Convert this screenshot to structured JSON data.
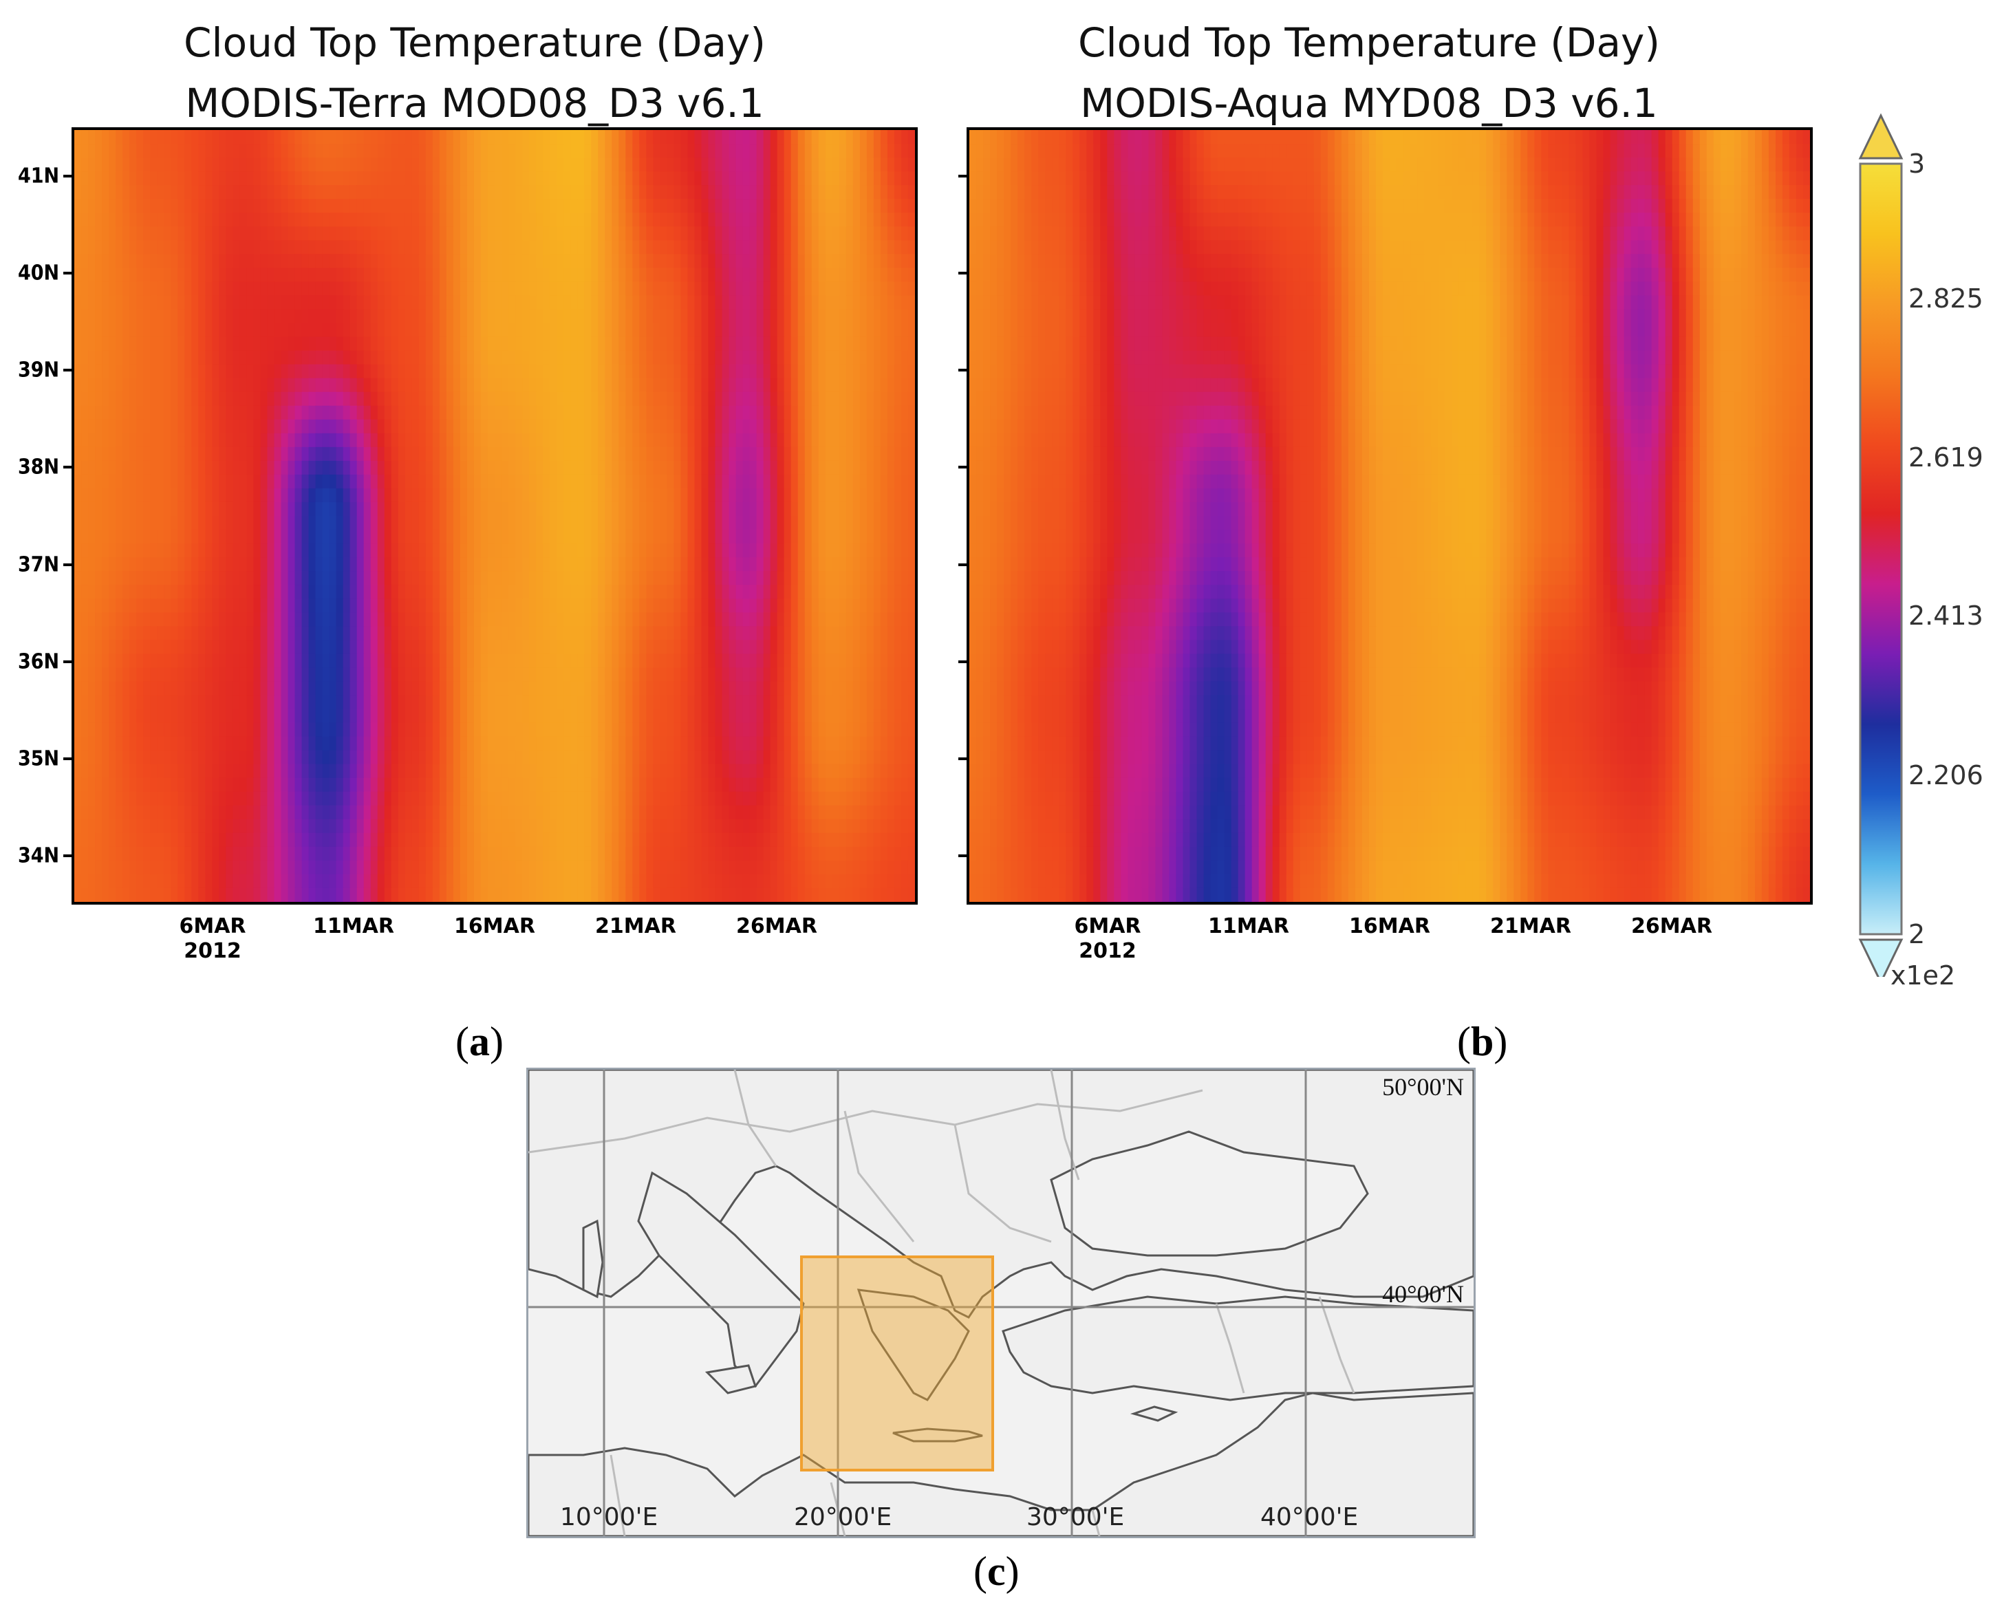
{
  "chart_data": [
    {
      "type": "heatmap",
      "panel": "(a)",
      "title": "Cloud Top Temperature (Day)",
      "subtitle": "MODIS-Terra MOD08_D3 v6.1",
      "x_tick_labels": [
        "6MAR",
        "11MAR",
        "16MAR",
        "21MAR",
        "26MAR"
      ],
      "x_year_label": "2012",
      "y_tick_labels": [
        "41N",
        "40N",
        "39N",
        "38N",
        "37N",
        "36N",
        "35N",
        "34N"
      ],
      "x": [
        "1MAR",
        "4MAR",
        "7MAR",
        "10MAR",
        "13MAR",
        "16MAR",
        "19MAR",
        "22MAR",
        "25MAR",
        "28MAR",
        "31MAR"
      ],
      "y": [
        33.5,
        35.5,
        37.5,
        39.5,
        41.5
      ],
      "values": [
        [
          270,
          266,
          252,
          235,
          262,
          280,
          284,
          262,
          258,
          266,
          262
        ],
        [
          272,
          262,
          256,
          226,
          258,
          282,
          284,
          265,
          250,
          276,
          266
        ],
        [
          274,
          270,
          258,
          224,
          262,
          280,
          286,
          272,
          242,
          280,
          268
        ],
        [
          276,
          270,
          256,
          255,
          264,
          284,
          286,
          268,
          248,
          280,
          270
        ],
        [
          278,
          266,
          260,
          270,
          266,
          284,
          288,
          258,
          246,
          284,
          258
        ]
      ],
      "xlabel": "",
      "ylabel": "",
      "units": "x1e2"
    },
    {
      "type": "heatmap",
      "panel": "(b)",
      "title": "Cloud Top Temperature (Day)",
      "subtitle": "MODIS-Aqua MYD08_D3 v6.1",
      "x_tick_labels": [
        "6MAR",
        "11MAR",
        "16MAR",
        "21MAR",
        "26MAR"
      ],
      "x_year_label": "2012",
      "y_tick_labels": [
        "41N",
        "40N",
        "39N",
        "38N",
        "37N",
        "36N",
        "35N",
        "34N"
      ],
      "x": [
        "1MAR",
        "4MAR",
        "7MAR",
        "10MAR",
        "13MAR",
        "16MAR",
        "19MAR",
        "22MAR",
        "25MAR",
        "28MAR",
        "31MAR"
      ],
      "y": [
        33.5,
        35.5,
        37.5,
        39.5,
        41.5
      ],
      "values": [
        [
          270,
          264,
          244,
          226,
          268,
          284,
          286,
          266,
          262,
          276,
          258
        ],
        [
          272,
          262,
          246,
          228,
          262,
          282,
          284,
          262,
          256,
          278,
          266
        ],
        [
          274,
          266,
          252,
          238,
          262,
          282,
          286,
          270,
          246,
          280,
          270
        ],
        [
          276,
          268,
          250,
          254,
          262,
          284,
          286,
          268,
          240,
          280,
          272
        ],
        [
          278,
          266,
          248,
          266,
          266,
          286,
          284,
          262,
          250,
          284,
          258
        ]
      ],
      "xlabel": "",
      "ylabel": "",
      "units": "x1e2"
    }
  ],
  "colorbar": {
    "min": 2,
    "max": 3,
    "labels": [
      "3",
      "2.825",
      "2.619",
      "2.413",
      "2.206",
      "2"
    ],
    "label_values": [
      3.0,
      2.825,
      2.619,
      2.413,
      2.206,
      2.0
    ],
    "multiplier": "x1e2",
    "colors": [
      "#c8eef8",
      "#56b4e8",
      "#1e5cc8",
      "#1e2e9e",
      "#7a1eb4",
      "#c81e8c",
      "#e02424",
      "#f04a1e",
      "#f4781e",
      "#f79a24",
      "#f8c21e",
      "#f6de3a"
    ]
  },
  "captions": {
    "a": "a",
    "b": "b",
    "c": "c"
  },
  "map": {
    "lat_labels": [
      "50°00'N",
      "40°00'N"
    ],
    "lon_labels": [
      "10°00'E",
      "20°00'E",
      "30°00'E",
      "40°00'E"
    ],
    "box_color": "#f0a830"
  }
}
